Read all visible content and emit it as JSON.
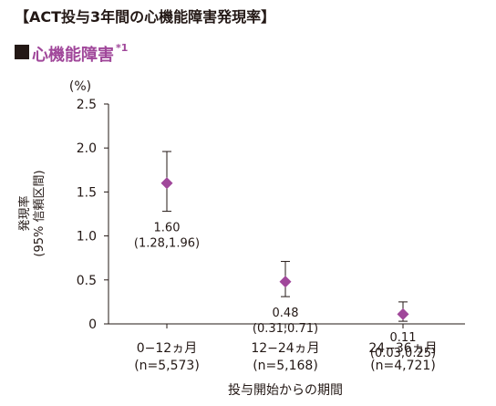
{
  "page": {
    "title": "【ACT投与3年間の心機能障害発現率】",
    "section": "心機能障害",
    "section_note": "*1"
  },
  "chart_data": {
    "type": "scatter",
    "unit": "(%)",
    "ylabel_line1": "発現率",
    "ylabel_line2": "(95% 信頼区間)",
    "xlabel": "投与開始からの期間",
    "ylim": [
      0,
      2.5
    ],
    "yticks": [
      0,
      0.5,
      1.0,
      1.5,
      2.0,
      2.5
    ],
    "ytick_labels": [
      "0",
      "0.5",
      "1.0",
      "1.5",
      "2.0",
      "2.5"
    ],
    "grid": false,
    "marker": "diamond",
    "marker_color": "#a0479a",
    "categories": [
      "0−12ヵ月",
      "12−24ヵ月",
      "24−36ヵ月"
    ],
    "category_n": [
      "(n=5,573)",
      "(n=5,168)",
      "(n=4,721)"
    ],
    "values": [
      1.6,
      0.48,
      0.11
    ],
    "ci_lower": [
      1.28,
      0.31,
      0.03
    ],
    "ci_upper": [
      1.96,
      0.71,
      0.25
    ],
    "value_labels": [
      "1.60",
      "0.48",
      "0.11"
    ],
    "ci_labels": [
      "(1.28,1.96)",
      "(0.31,0.71)",
      "(0.03,0.25)"
    ]
  }
}
